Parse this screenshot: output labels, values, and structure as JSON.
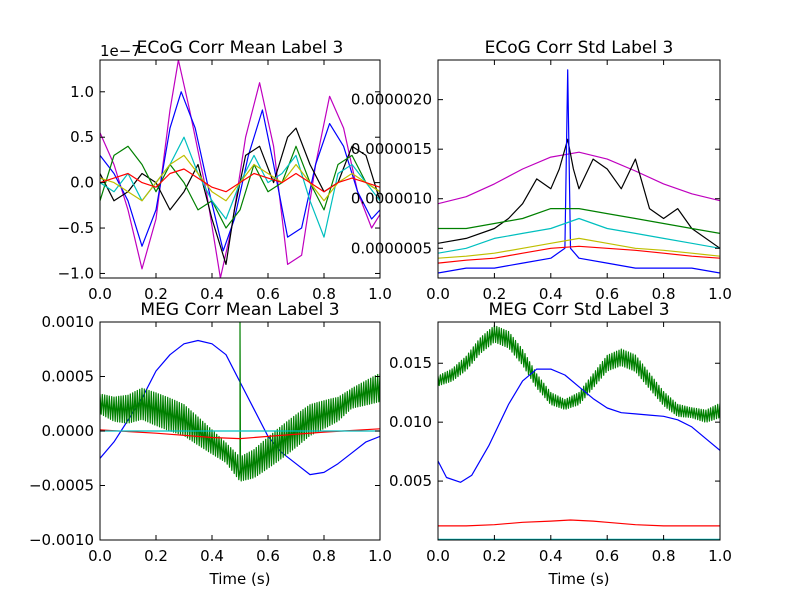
{
  "chart_data": [
    {
      "type": "line",
      "title": "ECoG Corr Mean Label 3",
      "xlabel": "",
      "ylabel": "",
      "offset_text": "1e−7",
      "xlim": [
        0.0,
        1.0
      ],
      "ylim": [
        -1.05,
        1.35
      ],
      "xticks": [
        "0.0",
        "0.2",
        "0.4",
        "0.6",
        "0.8",
        "1.0"
      ],
      "yticks": [
        "−1.0",
        "−0.5",
        "0.0",
        "0.5",
        "1.0"
      ],
      "grid": false,
      "legend": "none",
      "series": [
        {
          "color": "#bf00bf",
          "x": [
            0,
            0.05,
            0.1,
            0.15,
            0.2,
            0.25,
            0.28,
            0.32,
            0.38,
            0.43,
            0.47,
            0.52,
            0.57,
            0.62,
            0.67,
            0.72,
            0.77,
            0.82,
            0.87,
            0.92,
            0.97,
            1.0
          ],
          "y": [
            0.55,
            0.2,
            -0.3,
            -0.95,
            -0.4,
            0.8,
            1.35,
            0.8,
            -0.1,
            -1.05,
            -0.5,
            0.5,
            1.1,
            0.4,
            -0.9,
            -0.8,
            0.2,
            0.95,
            0.6,
            -0.1,
            -0.5,
            -0.35
          ]
        },
        {
          "color": "#0000ff",
          "x": [
            0,
            0.05,
            0.1,
            0.15,
            0.2,
            0.25,
            0.29,
            0.34,
            0.39,
            0.44,
            0.48,
            0.53,
            0.58,
            0.62,
            0.67,
            0.72,
            0.77,
            0.82,
            0.87,
            0.92,
            0.97,
            1.0
          ],
          "y": [
            0.3,
            0.1,
            -0.2,
            -0.7,
            -0.3,
            0.6,
            1.0,
            0.6,
            -0.1,
            -0.75,
            -0.4,
            0.3,
            0.8,
            0.2,
            -0.6,
            -0.5,
            0.2,
            0.65,
            0.4,
            -0.1,
            -0.4,
            -0.3
          ]
        },
        {
          "color": "#000000",
          "x": [
            0,
            0.05,
            0.1,
            0.15,
            0.2,
            0.25,
            0.3,
            0.35,
            0.4,
            0.45,
            0.48,
            0.52,
            0.57,
            0.62,
            0.67,
            0.7,
            0.75,
            0.8,
            0.85,
            0.9,
            0.95,
            1.0
          ],
          "y": [
            0.1,
            -0.2,
            -0.1,
            0.1,
            0.0,
            -0.3,
            -0.1,
            0.2,
            -0.4,
            -0.9,
            -0.3,
            0.3,
            0.4,
            0.0,
            0.5,
            0.6,
            0.2,
            -0.1,
            0.0,
            0.4,
            0.3,
            -0.2
          ]
        },
        {
          "color": "#008000",
          "x": [
            0,
            0.05,
            0.1,
            0.15,
            0.2,
            0.25,
            0.3,
            0.35,
            0.4,
            0.45,
            0.5,
            0.55,
            0.6,
            0.65,
            0.7,
            0.75,
            0.8,
            0.85,
            0.9,
            0.95,
            1.0
          ],
          "y": [
            -0.2,
            0.3,
            0.4,
            0.2,
            -0.1,
            0.2,
            0.0,
            -0.3,
            -0.2,
            -0.5,
            -0.3,
            0.2,
            -0.1,
            0.0,
            0.4,
            0.0,
            -0.3,
            0.2,
            0.3,
            0.0,
            -0.1
          ]
        },
        {
          "color": "#00bfbf",
          "x": [
            0,
            0.05,
            0.1,
            0.15,
            0.2,
            0.25,
            0.3,
            0.35,
            0.4,
            0.45,
            0.5,
            0.55,
            0.6,
            0.65,
            0.7,
            0.75,
            0.8,
            0.85,
            0.9,
            0.95,
            1.0
          ],
          "y": [
            0.0,
            -0.1,
            0.1,
            -0.2,
            0.0,
            0.2,
            0.5,
            0.1,
            -0.2,
            -0.4,
            0.0,
            0.3,
            0.0,
            0.1,
            0.3,
            -0.2,
            -0.6,
            0.1,
            0.2,
            0.0,
            -0.2
          ]
        },
        {
          "color": "#bfbf00",
          "x": [
            0,
            0.05,
            0.1,
            0.15,
            0.2,
            0.25,
            0.3,
            0.35,
            0.4,
            0.45,
            0.5,
            0.55,
            0.6,
            0.65,
            0.7,
            0.75,
            0.8,
            0.85,
            0.9,
            0.95,
            1.0
          ],
          "y": [
            0.05,
            0.0,
            -0.1,
            -0.2,
            0.0,
            0.2,
            0.3,
            0.1,
            -0.1,
            -0.2,
            0.0,
            0.2,
            0.1,
            0.0,
            0.2,
            0.0,
            -0.2,
            0.0,
            0.1,
            0.0,
            -0.1
          ]
        },
        {
          "color": "#ff0000",
          "x": [
            0,
            0.05,
            0.1,
            0.15,
            0.2,
            0.25,
            0.3,
            0.35,
            0.4,
            0.45,
            0.5,
            0.55,
            0.6,
            0.65,
            0.7,
            0.75,
            0.8,
            0.85,
            0.9,
            0.95,
            1.0
          ],
          "y": [
            0.0,
            0.05,
            0.1,
            0.0,
            -0.05,
            0.1,
            0.15,
            0.05,
            -0.05,
            -0.1,
            0.0,
            0.1,
            0.05,
            0.0,
            0.1,
            0.0,
            -0.1,
            0.0,
            0.05,
            0.0,
            -0.05
          ]
        }
      ]
    },
    {
      "type": "line",
      "title": "ECoG Corr Std Label 3",
      "xlabel": "",
      "ylabel": "",
      "xlim": [
        0.0,
        1.0
      ],
      "ylim": [
        2e-07,
        2.4e-06
      ],
      "xticks": [
        "0.0",
        "0.2",
        "0.4",
        "0.6",
        "0.8",
        "1.0"
      ],
      "yticks": [
        "0.0000005",
        "0.0000010",
        "0.0000015",
        "0.0000020"
      ],
      "ytick_values": [
        5e-07,
        1e-06,
        1.5e-06,
        2e-06
      ],
      "grid": false,
      "legend": "none",
      "series": [
        {
          "color": "#bf00bf",
          "x": [
            0,
            0.1,
            0.2,
            0.3,
            0.4,
            0.5,
            0.6,
            0.7,
            0.8,
            0.9,
            1.0
          ],
          "y": [
            9.5e-07,
            1.02e-06,
            1.15e-06,
            1.3e-06,
            1.42e-06,
            1.47e-06,
            1.4e-06,
            1.28e-06,
            1.15e-06,
            1.05e-06,
            9.8e-07
          ]
        },
        {
          "color": "#000000",
          "x": [
            0,
            0.1,
            0.2,
            0.25,
            0.3,
            0.35,
            0.4,
            0.43,
            0.46,
            0.48,
            0.5,
            0.55,
            0.6,
            0.65,
            0.7,
            0.75,
            0.8,
            0.85,
            0.9,
            1.0
          ],
          "y": [
            5.5e-07,
            6e-07,
            7e-07,
            8e-07,
            9.5e-07,
            1.2e-06,
            1.1e-06,
            1.3e-06,
            1.6e-06,
            1.3e-06,
            1.1e-06,
            1.4e-06,
            1.3e-06,
            1.1e-06,
            1.4e-06,
            9e-07,
            8e-07,
            9e-07,
            7e-07,
            5e-07
          ]
        },
        {
          "color": "#0000ff",
          "x": [
            0,
            0.1,
            0.2,
            0.3,
            0.4,
            0.45,
            0.46,
            0.47,
            0.5,
            0.6,
            0.7,
            0.8,
            0.9,
            1.0
          ],
          "y": [
            2.5e-07,
            3e-07,
            3e-07,
            3.5e-07,
            4e-07,
            5e-07,
            2.3e-06,
            5e-07,
            4e-07,
            3.5e-07,
            3e-07,
            3e-07,
            3e-07,
            2.5e-07
          ]
        },
        {
          "color": "#008000",
          "x": [
            0,
            0.1,
            0.2,
            0.3,
            0.4,
            0.5,
            0.6,
            0.7,
            0.8,
            0.9,
            1.0
          ],
          "y": [
            7e-07,
            7e-07,
            7.5e-07,
            8e-07,
            9e-07,
            9e-07,
            8.5e-07,
            8e-07,
            7.5e-07,
            7e-07,
            6.5e-07
          ]
        },
        {
          "color": "#00bfbf",
          "x": [
            0,
            0.1,
            0.2,
            0.3,
            0.4,
            0.5,
            0.6,
            0.7,
            0.8,
            0.9,
            1.0
          ],
          "y": [
            4.5e-07,
            5e-07,
            6e-07,
            6.5e-07,
            7e-07,
            8e-07,
            7e-07,
            6.5e-07,
            6e-07,
            5.5e-07,
            5e-07
          ]
        },
        {
          "color": "#bfbf00",
          "x": [
            0,
            0.1,
            0.2,
            0.3,
            0.4,
            0.5,
            0.6,
            0.7,
            0.8,
            0.9,
            1.0
          ],
          "y": [
            4e-07,
            4.2e-07,
            4.5e-07,
            5e-07,
            5.5e-07,
            6e-07,
            5.5e-07,
            5e-07,
            4.8e-07,
            4.5e-07,
            4.2e-07
          ]
        },
        {
          "color": "#ff0000",
          "x": [
            0,
            0.1,
            0.2,
            0.3,
            0.4,
            0.5,
            0.6,
            0.7,
            0.8,
            0.9,
            1.0
          ],
          "y": [
            3.5e-07,
            3.8e-07,
            4e-07,
            4.5e-07,
            5e-07,
            5.2e-07,
            5e-07,
            4.8e-07,
            4.5e-07,
            4.2e-07,
            4e-07
          ]
        }
      ]
    },
    {
      "type": "line",
      "title": "MEG Corr Mean Label 3",
      "xlabel": "Time (s)",
      "ylabel": "",
      "xlim": [
        0.0,
        1.0
      ],
      "ylim": [
        -0.001,
        0.001
      ],
      "xticks": [
        "0.0",
        "0.2",
        "0.4",
        "0.6",
        "0.8",
        "1.0"
      ],
      "yticks": [
        "−0.0010",
        "−0.0005",
        "0.0000",
        "0.0005",
        "0.0010"
      ],
      "ytick_values": [
        -0.001,
        -0.0005,
        0.0,
        0.0005,
        0.001
      ],
      "grid": false,
      "legend": "none",
      "series": [
        {
          "color": "#0000ff",
          "x": [
            0,
            0.05,
            0.1,
            0.15,
            0.2,
            0.25,
            0.3,
            0.35,
            0.4,
            0.45,
            0.5,
            0.55,
            0.6,
            0.65,
            0.7,
            0.75,
            0.8,
            0.85,
            0.9,
            0.95,
            1.0
          ],
          "y": [
            -0.00025,
            -0.0001,
            0.0001,
            0.0003,
            0.00055,
            0.0007,
            0.0008,
            0.00083,
            0.0008,
            0.0007,
            0.00045,
            0.0002,
            -5e-05,
            -0.0002,
            -0.0003,
            -0.0004,
            -0.00038,
            -0.0003,
            -0.0002,
            -0.0001,
            -5e-05
          ]
        },
        {
          "color": "#008000",
          "x": [
            0,
            0.05,
            0.1,
            0.15,
            0.2,
            0.25,
            0.3,
            0.35,
            0.4,
            0.45,
            0.5,
            0.55,
            0.6,
            0.65,
            0.7,
            0.75,
            0.8,
            0.85,
            0.9,
            0.95,
            1.0
          ],
          "y": [
            0.00025,
            0.0002,
            0.0002,
            0.00025,
            0.0002,
            0.00015,
            0.0001,
            0.0,
            -0.0001,
            -0.0002,
            -0.00035,
            -0.0003,
            -0.0002,
            -0.0001,
            0.0,
            0.0001,
            0.00015,
            0.0002,
            0.0003,
            0.00035,
            0.0004
          ],
          "oscillation": 0.00015,
          "spike": {
            "x": 0.5,
            "y": 0.001
          }
        },
        {
          "color": "#ff0000",
          "x": [
            0,
            0.2,
            0.4,
            0.5,
            0.6,
            0.8,
            1.0
          ],
          "y": [
            1e-05,
            -2e-05,
            -6e-05,
            -7e-05,
            -5e-05,
            -1e-05,
            2e-05
          ]
        },
        {
          "color": "#00bfbf",
          "x": [
            0,
            0.5,
            1.0
          ],
          "y": [
            0.0,
            0.0,
            0.0
          ]
        }
      ]
    },
    {
      "type": "line",
      "title": "MEG Corr Std Label 3",
      "xlabel": "Time (s)",
      "ylabel": "",
      "xlim": [
        0.0,
        1.0
      ],
      "ylim": [
        0.0,
        0.0185
      ],
      "xticks": [
        "0.0",
        "0.2",
        "0.4",
        "0.6",
        "0.8",
        "1.0"
      ],
      "yticks": [
        "0.005",
        "0.010",
        "0.015"
      ],
      "ytick_values": [
        0.005,
        0.01,
        0.015
      ],
      "grid": false,
      "legend": "none",
      "series": [
        {
          "color": "#008000",
          "x": [
            0,
            0.05,
            0.1,
            0.15,
            0.2,
            0.25,
            0.3,
            0.35,
            0.4,
            0.45,
            0.5,
            0.55,
            0.6,
            0.65,
            0.7,
            0.75,
            0.8,
            0.85,
            0.9,
            0.95,
            1.0
          ],
          "y": [
            0.0135,
            0.014,
            0.015,
            0.0165,
            0.0175,
            0.017,
            0.0155,
            0.0135,
            0.012,
            0.0115,
            0.012,
            0.0135,
            0.015,
            0.0155,
            0.015,
            0.0135,
            0.012,
            0.011,
            0.0108,
            0.0105,
            0.011
          ],
          "oscillation": 0.0007
        },
        {
          "color": "#0000ff",
          "x": [
            0,
            0.03,
            0.08,
            0.12,
            0.18,
            0.25,
            0.3,
            0.35,
            0.4,
            0.45,
            0.5,
            0.55,
            0.6,
            0.65,
            0.7,
            0.75,
            0.8,
            0.85,
            0.9,
            0.95,
            1.0
          ],
          "y": [
            0.0067,
            0.0053,
            0.0049,
            0.0055,
            0.008,
            0.0115,
            0.0135,
            0.0145,
            0.0145,
            0.014,
            0.013,
            0.012,
            0.0112,
            0.0108,
            0.0107,
            0.0106,
            0.0105,
            0.0102,
            0.0096,
            0.0086,
            0.0076
          ]
        },
        {
          "color": "#ff0000",
          "x": [
            0,
            0.1,
            0.2,
            0.3,
            0.4,
            0.47,
            0.55,
            0.6,
            0.7,
            0.8,
            0.9,
            1.0
          ],
          "y": [
            0.0012,
            0.0012,
            0.0013,
            0.0015,
            0.0016,
            0.0017,
            0.0016,
            0.0015,
            0.0013,
            0.0012,
            0.0012,
            0.0012
          ]
        },
        {
          "color": "#00bfbf",
          "x": [
            0,
            0.5,
            1.0
          ],
          "y": [
            5e-05,
            5e-05,
            5e-05
          ]
        }
      ]
    }
  ]
}
